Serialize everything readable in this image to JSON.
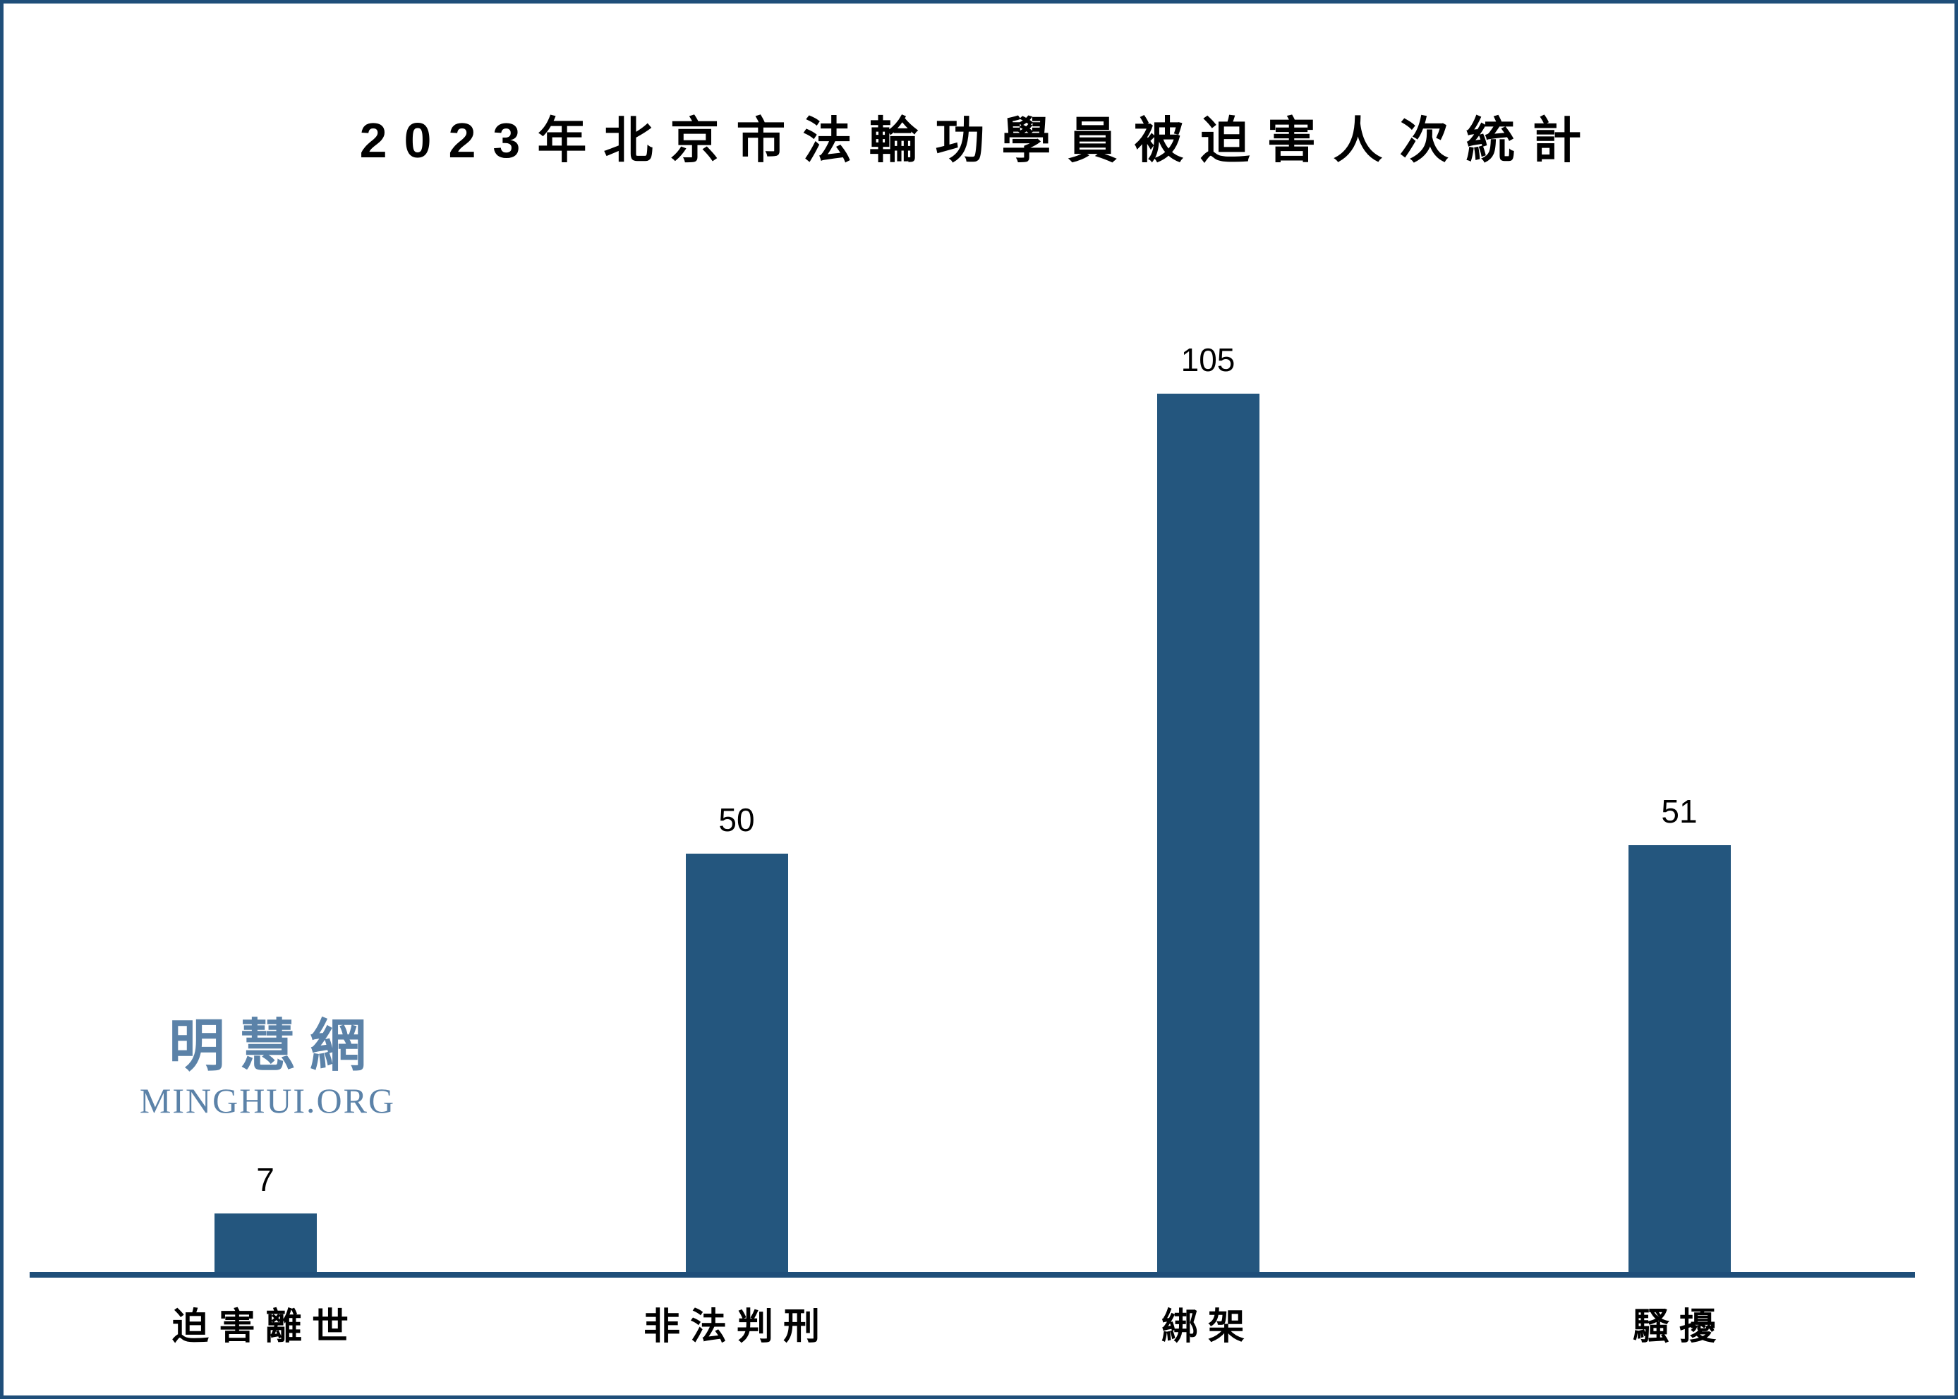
{
  "title": "2023年北京市法輪功學員被迫害人次統計",
  "watermark": {
    "cjk": "明慧網",
    "latin": "MINGHUI.ORG"
  },
  "colors": {
    "bar": "#24567e",
    "axis": "#1f4e79",
    "border": "#1f4e79",
    "title_text": "#000000",
    "label_text": "#000000",
    "watermark": "#5b82a8",
    "background": "#ffffff"
  },
  "chart_data": {
    "type": "bar",
    "title": "2023年北京市法輪功學員被迫害人次統計",
    "categories": [
      "迫害離世",
      "非法判刑",
      "綁架",
      "騷擾"
    ],
    "values": [
      7,
      50,
      105,
      51
    ],
    "value_labels": [
      "7",
      "50",
      "105",
      "51"
    ],
    "xlabel": "",
    "ylabel": "",
    "ylim": [
      0,
      110
    ],
    "grid": false,
    "legend": false,
    "y_axis_visible": false,
    "bar_color": "#24567e",
    "layout_hint": "single series, value labels above bars, category labels below baseline"
  }
}
